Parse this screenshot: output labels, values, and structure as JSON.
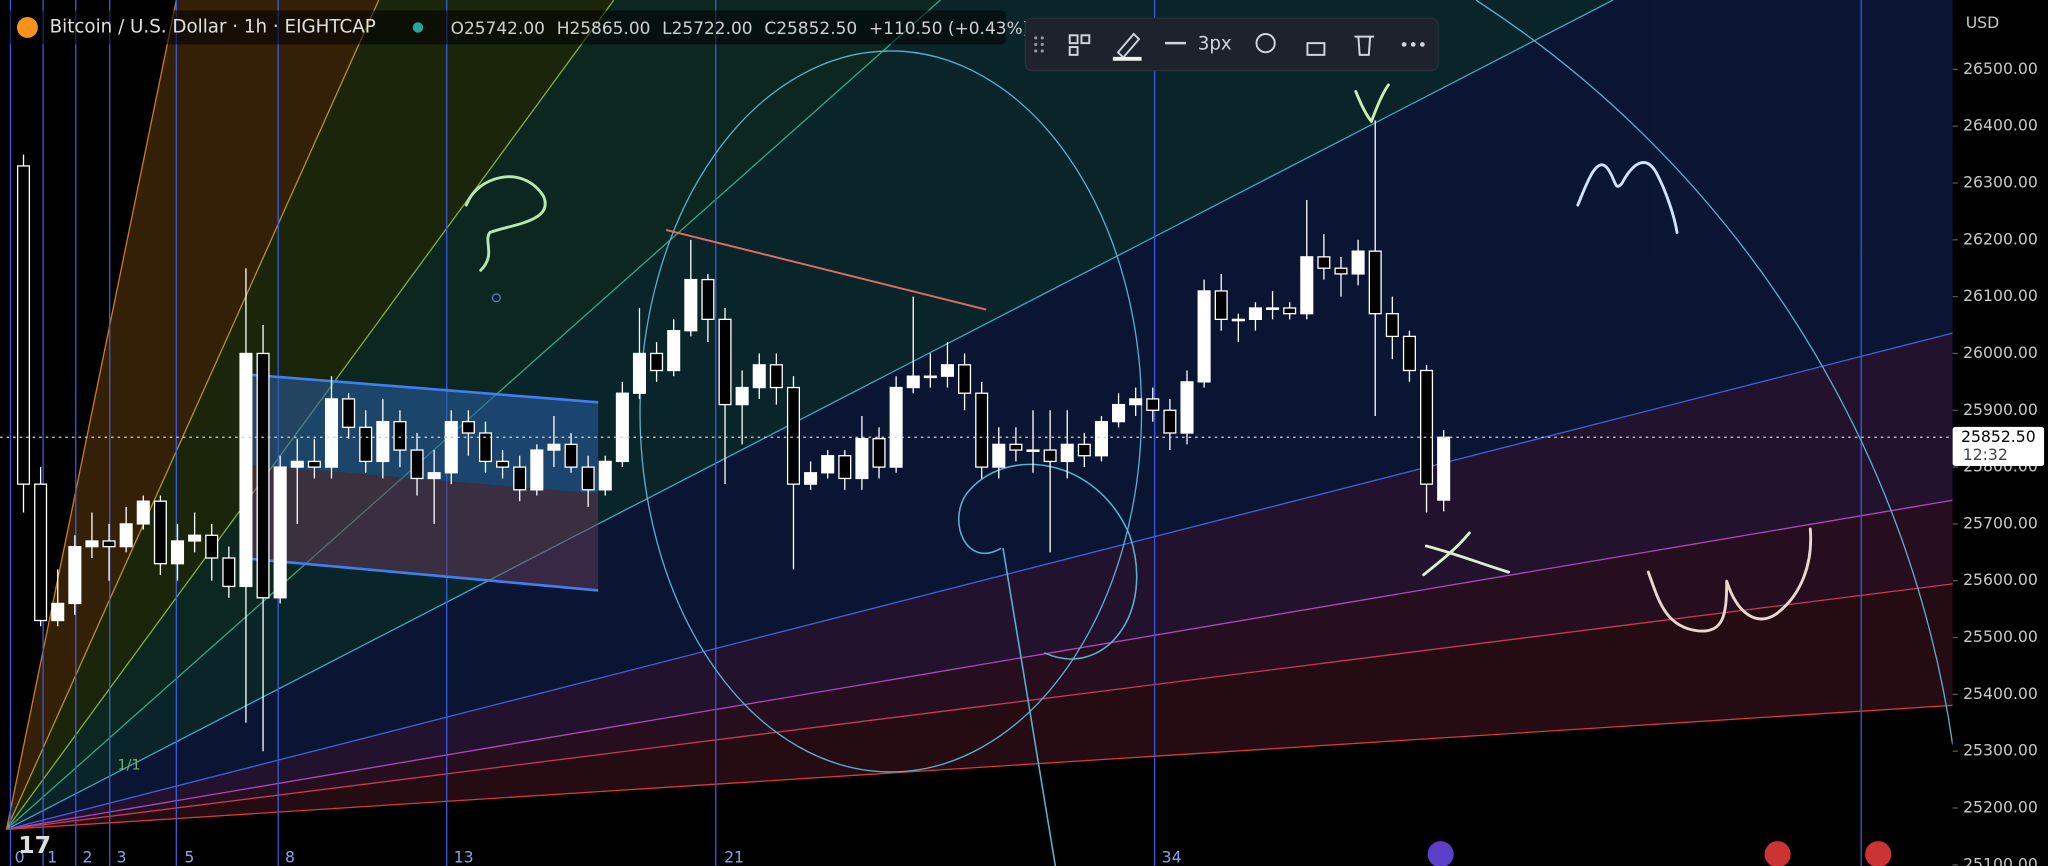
{
  "chart_data": {
    "type": "candlestick",
    "title": "Bitcoin / U.S. Dollar · 1h · EIGHTCAP",
    "ohlc_header": [
      "O25742.00",
      "H25865.00",
      "L25722.00",
      "C25852.50",
      "+110.50 (+0.43%)"
    ],
    "currency": "USD",
    "toolbar_width": "3px",
    "time_zone_labels": [
      "0",
      "1",
      "2",
      "3",
      "5",
      "8",
      "13",
      "21",
      "34"
    ],
    "fan_label": "1/1",
    "last_price": 25852.5,
    "last_price_label": "25852.50",
    "countdown": "12:32",
    "up_color": "#ffffff",
    "down_color": "#000000",
    "ylim": [
      25098,
      26622
    ],
    "yticks": [
      {
        "value": 25100,
        "label": "25100.00"
      },
      {
        "value": 25200,
        "label": "25200.00"
      },
      {
        "value": 25300,
        "label": "25300.00"
      },
      {
        "value": 25400,
        "label": "25400.00"
      },
      {
        "value": 25500,
        "label": "25500.00"
      },
      {
        "value": 25600,
        "label": "25600.00"
      },
      {
        "value": 25700,
        "label": "25700.00"
      },
      {
        "value": 25800,
        "label": "25800.00"
      },
      {
        "value": 25900,
        "label": "25900.00"
      },
      {
        "value": 26000,
        "label": "26000.00"
      },
      {
        "value": 26100,
        "label": "26100.00"
      },
      {
        "value": 26200,
        "label": "26200.00"
      },
      {
        "value": 26300,
        "label": "26300.00"
      },
      {
        "value": 26400,
        "label": "26400.00"
      },
      {
        "value": 26500,
        "label": "26500.00"
      }
    ],
    "grid": false,
    "categories": [
      null,
      null,
      null,
      null,
      null,
      null,
      null,
      null,
      null,
      null,
      null,
      null,
      null,
      null,
      null,
      null,
      null,
      null,
      null,
      null,
      null,
      null,
      null,
      null,
      null,
      null,
      null,
      null,
      null,
      null,
      null,
      null,
      null,
      null,
      null,
      null,
      null,
      null,
      null,
      null,
      null,
      null,
      null,
      null,
      null,
      null,
      null,
      null,
      null,
      null,
      null,
      null,
      null,
      null,
      null,
      null,
      null,
      null,
      null,
      null,
      null,
      null,
      null,
      null,
      null,
      null,
      null,
      null,
      null,
      null,
      null,
      null,
      null,
      null,
      null,
      null,
      null,
      null,
      null,
      null,
      null,
      null,
      null,
      null
    ],
    "open": [
      26330,
      25770,
      25530,
      25560,
      25660,
      25670,
      25660,
      25700,
      25740,
      25630,
      25670,
      25680,
      25640,
      25590,
      26000,
      25570,
      25800,
      25810,
      25800,
      25920,
      25870,
      25810,
      25880,
      25830,
      25780,
      25790,
      25880,
      25860,
      25810,
      25800,
      25760,
      25830,
      25840,
      25800,
      25760,
      25810,
      25930,
      26000,
      25970,
      26040,
      26130,
      26060,
      25910,
      25940,
      25980,
      25940,
      25770,
      25790,
      25820,
      25780,
      25850,
      25800,
      25940,
      25960,
      25960,
      25980,
      25930,
      25800,
      25840,
      25830,
      25830,
      25810,
      25840,
      25820,
      25880,
      25910,
      25920,
      25900,
      25860,
      25950,
      26110,
      26060,
      26060,
      26080,
      26080,
      26070,
      26170,
      26150,
      26140,
      26180,
      26070,
      26030,
      25970,
      25742
    ],
    "high": [
      26350,
      25800,
      25620,
      25680,
      25720,
      25700,
      25730,
      25750,
      25750,
      25700,
      25720,
      25700,
      25660,
      26150,
      26050,
      25820,
      25850,
      25850,
      25960,
      25930,
      25900,
      25920,
      25900,
      25860,
      25830,
      25900,
      25900,
      25880,
      25830,
      25820,
      25840,
      25890,
      25860,
      25820,
      25820,
      25950,
      26080,
      26020,
      26060,
      26200,
      26140,
      26080,
      25970,
      26000,
      26000,
      25960,
      25810,
      25830,
      25830,
      25890,
      25870,
      25960,
      26100,
      26000,
      26020,
      26000,
      25950,
      25870,
      25870,
      25900,
      25900,
      25900,
      25860,
      25890,
      25930,
      25940,
      25940,
      25920,
      25970,
      26130,
      26140,
      26070,
      26090,
      26110,
      26090,
      26270,
      26210,
      26170,
      26200,
      26410,
      26100,
      26040,
      25980,
      25865
    ],
    "low": [
      25720,
      25520,
      25520,
      25540,
      25640,
      25600,
      25650,
      25690,
      25610,
      25600,
      25650,
      25600,
      25570,
      25350,
      25300,
      25560,
      25700,
      25780,
      25780,
      25850,
      25790,
      25780,
      25800,
      25750,
      25700,
      25770,
      25820,
      25790,
      25780,
      25740,
      25750,
      25800,
      25790,
      25730,
      25750,
      25800,
      25920,
      25950,
      25960,
      26030,
      26020,
      25770,
      25840,
      25920,
      25910,
      25620,
      25760,
      25780,
      25760,
      25760,
      25780,
      25790,
      25930,
      25940,
      25940,
      25900,
      25780,
      25780,
      25810,
      25790,
      25650,
      25780,
      25800,
      25810,
      25870,
      25890,
      25880,
      25830,
      25840,
      25940,
      26040,
      26020,
      26040,
      26060,
      26060,
      26060,
      26130,
      26100,
      26120,
      25890,
      25990,
      25950,
      25720,
      25722
    ],
    "close": [
      25770,
      25530,
      25560,
      25660,
      25670,
      25660,
      25700,
      25740,
      25630,
      25670,
      25680,
      25640,
      25590,
      26000,
      25570,
      25800,
      25810,
      25800,
      25920,
      25870,
      25810,
      25880,
      25830,
      25780,
      25790,
      25880,
      25860,
      25810,
      25800,
      25760,
      25830,
      25840,
      25800,
      25760,
      25810,
      25930,
      26000,
      25970,
      26040,
      26130,
      26060,
      25910,
      25940,
      25980,
      25940,
      25770,
      25790,
      25820,
      25780,
      25850,
      25800,
      25940,
      25960,
      25960,
      25980,
      25930,
      25800,
      25840,
      25830,
      25830,
      25810,
      25840,
      25820,
      25880,
      25910,
      25920,
      25900,
      25860,
      25950,
      26110,
      26060,
      26060,
      26080,
      26080,
      26070,
      26170,
      26150,
      26140,
      26180,
      26070,
      26030,
      25970,
      25770,
      25852.5
    ]
  }
}
